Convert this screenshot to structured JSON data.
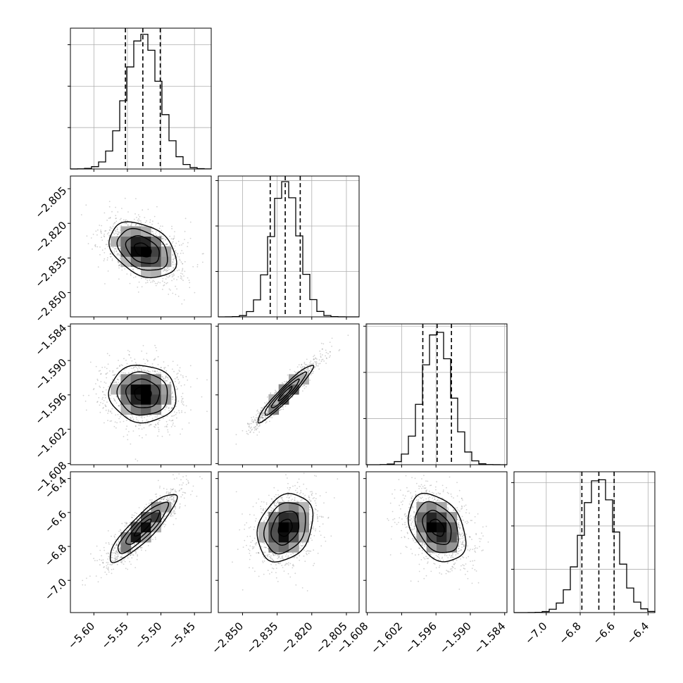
{
  "chart_data": {
    "type": "corner",
    "colors": {
      "frame": "#000000",
      "grid": "#b0b0b0",
      "hist": "#000000",
      "contour": "#000000",
      "points": "#7f7f7f"
    },
    "parameters": [
      {
        "index": 0,
        "range": [
          -5.635,
          -5.425
        ],
        "ticks": [
          "−5.60",
          "−5.55",
          "−5.50",
          "−5.45"
        ],
        "tick_values": [
          -5.6,
          -5.55,
          -5.5,
          -5.45
        ],
        "mean": -5.527,
        "sd": 0.025,
        "quantiles": [
          -5.553,
          -5.527,
          -5.501
        ],
        "hist_ylim": [
          0,
          6800
        ]
      },
      {
        "index": 1,
        "range": [
          -2.8605,
          -2.7995
        ],
        "ticks": [
          "−2.850",
          "−2.835",
          "−2.820",
          "−2.805"
        ],
        "tick_values": [
          -2.85,
          -2.835,
          -2.82,
          -2.805
        ],
        "mean": -2.8315,
        "sd": 0.006,
        "quantiles": [
          -2.838,
          -2.8315,
          -2.825
        ],
        "hist_ylim": [
          0,
          6200
        ]
      },
      {
        "index": 2,
        "range": [
          -1.6082,
          -1.5836
        ],
        "ticks": [
          "−1.608",
          "−1.602",
          "−1.596",
          "−1.590",
          "−1.584"
        ],
        "tick_values": [
          -1.608,
          -1.602,
          -1.596,
          -1.59,
          -1.584
        ],
        "mean": -1.5958,
        "sd": 0.0025,
        "quantiles": [
          -1.5983,
          -1.5958,
          -1.5933
        ],
        "hist_ylim": [
          0,
          6100
        ]
      },
      {
        "index": 3,
        "range": [
          -7.19,
          -6.36
        ],
        "ticks": [
          "−7.0",
          "−6.8",
          "−6.6",
          "−6.4"
        ],
        "tick_values": [
          -7.0,
          -6.8,
          -6.6,
          -6.4
        ],
        "mean": -6.69,
        "sd": 0.1,
        "quantiles": [
          -6.79,
          -6.69,
          -6.6
        ],
        "hist_ylim": [
          0,
          6500
        ]
      }
    ],
    "correlations": [
      {
        "row": 1,
        "col": 0,
        "rho": -0.35
      },
      {
        "row": 2,
        "col": 0,
        "rho": -0.05
      },
      {
        "row": 2,
        "col": 1,
        "rho": 0.95
      },
      {
        "row": 3,
        "col": 0,
        "rho": 0.88
      },
      {
        "row": 3,
        "col": 1,
        "rho": 0.25
      },
      {
        "row": 3,
        "col": 2,
        "rho": -0.35
      }
    ],
    "contour_levels_sigma": [
      0.5,
      1.0,
      1.5,
      2.0
    ],
    "grid": true,
    "xlabel": "",
    "ylabel": ""
  }
}
